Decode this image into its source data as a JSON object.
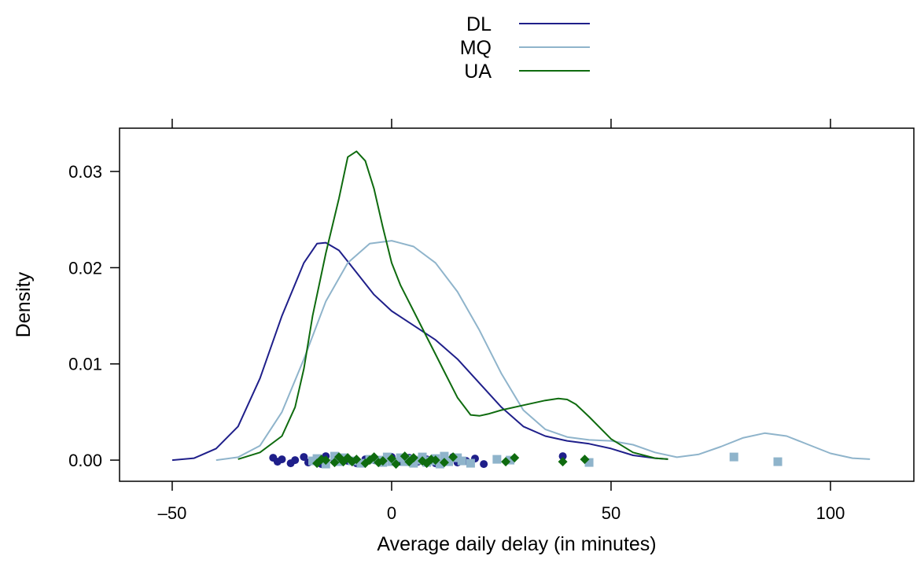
{
  "chart_data": {
    "type": "line",
    "title": "",
    "xlabel": "Average daily delay (in minutes)",
    "ylabel": "Density",
    "xlim": [
      -62,
      119
    ],
    "ylim": [
      -0.0022,
      0.0345
    ],
    "xticks": [
      -50,
      0,
      50,
      100
    ],
    "xtick_labels": [
      "–50",
      "0",
      "50",
      "100"
    ],
    "yticks": [
      0,
      0.01,
      0.02,
      0.03
    ],
    "ytick_labels": [
      "0.00",
      "0.01",
      "0.02",
      "0.03"
    ],
    "grid": false,
    "legend_position": "top-center",
    "series": [
      {
        "name": "DL",
        "color": "#1f1f8a",
        "marker": "circle",
        "x": [
          -50,
          -45,
          -40,
          -35,
          -30,
          -25,
          -20,
          -17,
          -15,
          -12,
          -8,
          -4,
          0,
          5,
          10,
          15,
          20,
          25,
          30,
          35,
          40,
          45,
          50,
          55,
          60,
          63
        ],
        "y": [
          0.0,
          0.0002,
          0.0012,
          0.0035,
          0.0085,
          0.015,
          0.0205,
          0.0225,
          0.0226,
          0.0218,
          0.0195,
          0.0172,
          0.0155,
          0.014,
          0.0125,
          0.0105,
          0.008,
          0.0055,
          0.0035,
          0.0025,
          0.002,
          0.0017,
          0.0012,
          0.0005,
          0.0002,
          0.0001
        ],
        "rug": [
          -27,
          -26,
          -25,
          -23,
          -22,
          -20,
          -19,
          -18,
          -17,
          -16,
          -15,
          -13,
          -11,
          -10,
          -8,
          -6,
          -4,
          -2,
          0,
          2,
          4,
          6,
          8,
          10,
          12,
          14,
          15,
          17,
          19,
          21,
          39
        ]
      },
      {
        "name": "MQ",
        "color": "#8fb4cb",
        "marker": "square",
        "x": [
          -40,
          -35,
          -30,
          -25,
          -20,
          -15,
          -10,
          -5,
          0,
          5,
          10,
          15,
          20,
          25,
          30,
          35,
          40,
          45,
          50,
          55,
          60,
          65,
          70,
          75,
          80,
          85,
          90,
          95,
          100,
          105,
          109
        ],
        "y": [
          0.0,
          0.0003,
          0.0015,
          0.005,
          0.0105,
          0.0165,
          0.0205,
          0.0225,
          0.0228,
          0.0222,
          0.0205,
          0.0175,
          0.0135,
          0.009,
          0.0052,
          0.0032,
          0.0024,
          0.0021,
          0.002,
          0.0016,
          0.0008,
          0.0003,
          0.0006,
          0.0014,
          0.0023,
          0.0028,
          0.0025,
          0.0016,
          0.0007,
          0.0002,
          0.0001
        ],
        "rug": [
          -18,
          -17,
          -15,
          -13,
          -12,
          -11,
          -9,
          -7,
          -5,
          -3,
          -2,
          -1,
          0,
          2,
          3,
          4,
          5,
          6,
          7,
          8,
          9,
          10,
          11,
          12,
          13,
          15,
          16,
          18,
          24,
          27,
          45,
          78,
          88
        ]
      },
      {
        "name": "UA",
        "color": "#0f6b0f",
        "marker": "diamond",
        "x": [
          -35,
          -30,
          -25,
          -22,
          -20,
          -18,
          -15,
          -12,
          -10,
          -8,
          -6,
          -4,
          -2,
          0,
          2,
          5,
          8,
          10,
          12,
          15,
          18,
          20,
          22,
          25,
          30,
          35,
          38,
          40,
          42,
          45,
          50,
          55,
          60,
          63
        ],
        "y": [
          0.0001,
          0.0008,
          0.0025,
          0.0055,
          0.0095,
          0.015,
          0.0215,
          0.0272,
          0.0315,
          0.0321,
          0.0311,
          0.0282,
          0.0242,
          0.0205,
          0.0182,
          0.0155,
          0.0128,
          0.011,
          0.0092,
          0.0065,
          0.0047,
          0.0046,
          0.0048,
          0.0052,
          0.0057,
          0.0062,
          0.0064,
          0.0063,
          0.0058,
          0.0045,
          0.0022,
          0.0008,
          0.0002,
          0.0001
        ],
        "rug": [
          -17,
          -16,
          -15,
          -13,
          -12,
          -11,
          -10,
          -9,
          -8,
          -6,
          -5,
          -4,
          -3,
          -2,
          0,
          1,
          3,
          4,
          5,
          7,
          8,
          9,
          10,
          12,
          14,
          26,
          28,
          39,
          44
        ]
      }
    ]
  }
}
